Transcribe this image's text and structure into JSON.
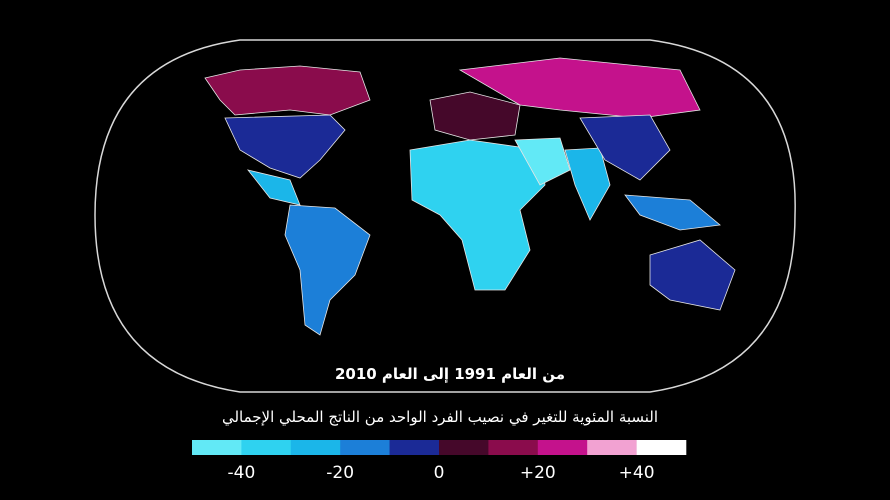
{
  "subtitle": "من العام 1991 إلى العام 2010",
  "legend": {
    "title": "النسبة المئوية للتغير في نصيب الفرد الواحد من الناتج المحلي الإجمالي",
    "colors": [
      "#62e9f6",
      "#2fd2f0",
      "#1bb6e9",
      "#1c7fd8",
      "#1b2a96",
      "#45082a",
      "#8a0c4c",
      "#c4128c",
      "#f2a2d2",
      "#ffffff"
    ],
    "range": [
      -50,
      50
    ],
    "ticks": [
      -40,
      -20,
      0,
      {
        "value": 20,
        "label": "+20"
      },
      {
        "value": 40,
        "label": "+40"
      }
    ]
  }
}
